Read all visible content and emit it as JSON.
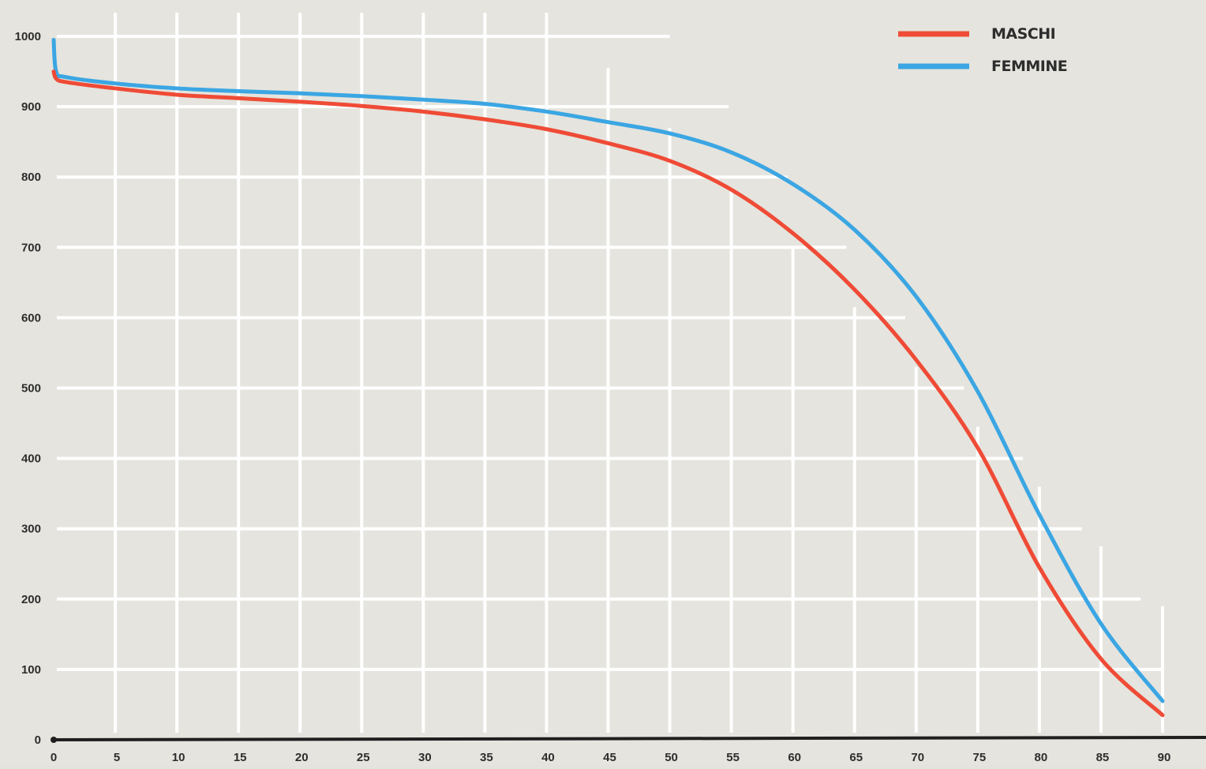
{
  "chart_data": {
    "type": "line",
    "title": "",
    "xlabel": "",
    "ylabel": "",
    "xlim": [
      0,
      90
    ],
    "ylim": [
      0,
      1000
    ],
    "grid": true,
    "legend_position": "top-right",
    "x_ticks": [
      0,
      5,
      10,
      15,
      20,
      25,
      30,
      35,
      40,
      45,
      50,
      55,
      60,
      65,
      70,
      75,
      80,
      85,
      90
    ],
    "y_ticks": [
      0,
      100,
      200,
      300,
      400,
      500,
      600,
      700,
      800,
      900,
      1000
    ],
    "series": [
      {
        "name": "MASCHI",
        "color": "#ef4b36",
        "x": [
          0,
          0.2,
          1,
          5,
          10,
          15,
          20,
          25,
          30,
          35,
          40,
          45,
          50,
          55,
          60,
          65,
          70,
          75,
          80,
          85,
          90
        ],
        "y": [
          950,
          940,
          935,
          926,
          917,
          912,
          907,
          901,
          893,
          882,
          868,
          848,
          823,
          782,
          720,
          640,
          540,
          415,
          245,
          115,
          35
        ]
      },
      {
        "name": "FEMMINE",
        "color": "#3ba6e3",
        "x": [
          0,
          0.2,
          1,
          5,
          10,
          15,
          20,
          25,
          30,
          35,
          40,
          45,
          50,
          55,
          60,
          65,
          70,
          75,
          80,
          85,
          90
        ],
        "y": [
          995,
          950,
          942,
          933,
          926,
          922,
          919,
          915,
          910,
          904,
          893,
          878,
          862,
          835,
          790,
          725,
          630,
          495,
          320,
          165,
          55
        ]
      }
    ]
  }
}
